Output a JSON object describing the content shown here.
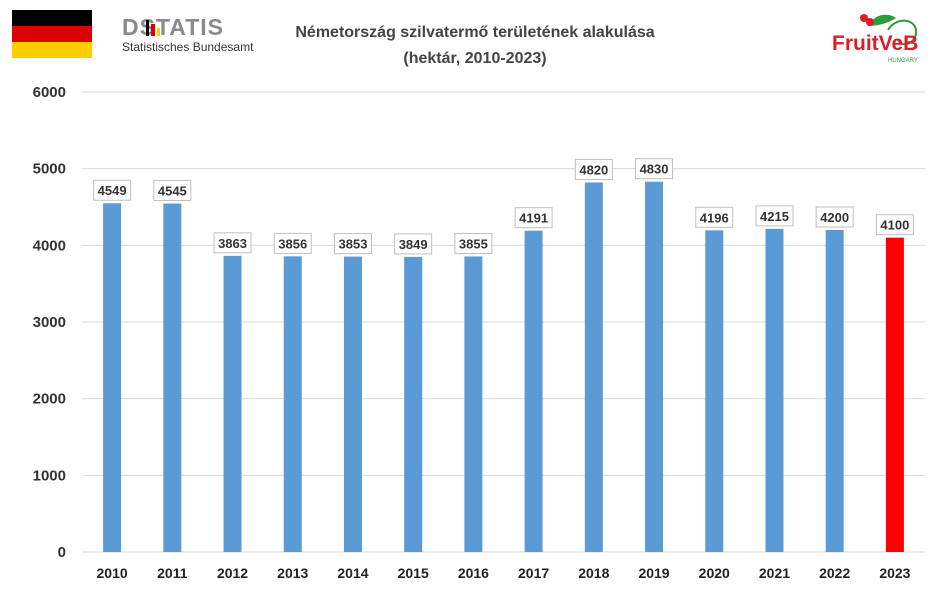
{
  "header": {
    "flag": {
      "name": "germany-flag",
      "colors": [
        "#000000",
        "#dd0000",
        "#ffce00"
      ]
    },
    "destatis": {
      "wordmark": "DSTATIS",
      "subtitle": "Statistisches Bundesamt",
      "mark_colors": [
        "#000000",
        "#dd0000",
        "#ffce00"
      ]
    },
    "fruitveb": {
      "wordmark": "FruitVeB",
      "country": "HUNGARY"
    }
  },
  "chart_data": {
    "type": "bar",
    "title": "Németország szilvatermő területének alakulása",
    "subtitle": "(hektár, 2010-2023)",
    "categories": [
      "2010",
      "2011",
      "2012",
      "2013",
      "2014",
      "2015",
      "2016",
      "2017",
      "2018",
      "2019",
      "2020",
      "2021",
      "2022",
      "2023"
    ],
    "values": [
      4549,
      4545,
      3863,
      3856,
      3853,
      3849,
      3855,
      4191,
      4820,
      4830,
      4196,
      4215,
      4200,
      4100
    ],
    "ylim": [
      0,
      6000
    ],
    "yticks": [
      0,
      1000,
      2000,
      3000,
      4000,
      5000,
      6000
    ],
    "grid": true,
    "colors": {
      "bar": "#5b9bd5",
      "highlight": "#ff0000",
      "grid": "#d9d9d9"
    },
    "highlight_index": 13,
    "xlabel": "",
    "ylabel": ""
  }
}
